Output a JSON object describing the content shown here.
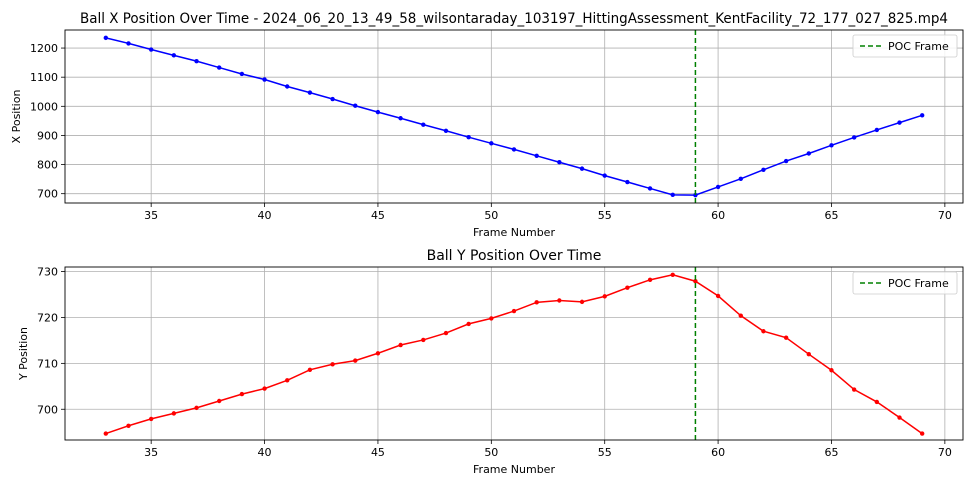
{
  "chart_data": [
    {
      "type": "line",
      "title": "Ball X Position Over Time - 2024_06_20_13_49_58_wilsontaraday_103197_HittingAssessment_KentFacility_72_177_027_825.mp4",
      "xlabel": "Frame Number",
      "ylabel": "X Position",
      "xlim": [
        31.2,
        70.8
      ],
      "ylim": [
        668,
        1262
      ],
      "xticks": [
        "35",
        "40",
        "45",
        "50",
        "55",
        "60",
        "65",
        "70"
      ],
      "yticks": [
        "700",
        "800",
        "900",
        "1000",
        "1100",
        "1200"
      ],
      "grid": true,
      "legend_position": "top-right",
      "series": [
        {
          "color": "#0000ff",
          "x": [
            33,
            34,
            35,
            36,
            37,
            38,
            39,
            40,
            41,
            42,
            43,
            44,
            45,
            46,
            47,
            48,
            49,
            50,
            51,
            52,
            53,
            54,
            55,
            56,
            57,
            58,
            59,
            60,
            61,
            62,
            63,
            64,
            65,
            66,
            67,
            68,
            69
          ],
          "y": [
            1235,
            1216,
            1195,
            1175,
            1155,
            1133,
            1111,
            1092,
            1068,
            1047,
            1025,
            1002,
            980,
            959,
            937,
            916,
            894,
            873,
            852,
            830,
            808,
            786,
            762,
            740,
            718,
            696,
            695,
            723,
            751,
            782,
            812,
            838,
            866,
            893,
            919,
            944,
            969
          ]
        }
      ],
      "vline": {
        "x": 59,
        "label": "POC Frame",
        "color": "#008000",
        "style": "dashed"
      }
    },
    {
      "type": "line",
      "title": "Ball Y Position Over Time",
      "xlabel": "Frame Number",
      "ylabel": "Y Position",
      "xlim": [
        31.2,
        70.8
      ],
      "ylim": [
        693.3,
        731.0
      ],
      "xticks": [
        "35",
        "40",
        "45",
        "50",
        "55",
        "60",
        "65",
        "70"
      ],
      "yticks": [
        "700",
        "710",
        "720",
        "730"
      ],
      "grid": true,
      "legend_position": "top-right",
      "series": [
        {
          "color": "#ff0000",
          "x": [
            33,
            34,
            35,
            36,
            37,
            38,
            39,
            40,
            41,
            42,
            43,
            44,
            45,
            46,
            47,
            48,
            49,
            50,
            51,
            52,
            53,
            54,
            55,
            56,
            57,
            58,
            59,
            60,
            61,
            62,
            63,
            64,
            65,
            66,
            67,
            68,
            69
          ],
          "y": [
            694.7,
            696.4,
            697.9,
            699.1,
            700.3,
            701.8,
            703.3,
            704.5,
            706.3,
            708.6,
            709.8,
            710.6,
            712.2,
            714.0,
            715.1,
            716.6,
            718.6,
            719.8,
            721.4,
            723.3,
            723.7,
            723.4,
            724.6,
            726.5,
            728.2,
            729.3,
            727.9,
            724.7,
            720.4,
            717.0,
            715.6,
            712.0,
            708.5,
            704.3,
            701.6,
            698.2,
            694.7
          ]
        }
      ],
      "vline": {
        "x": 59,
        "label": "POC Frame",
        "color": "#008000",
        "style": "dashed"
      }
    }
  ]
}
